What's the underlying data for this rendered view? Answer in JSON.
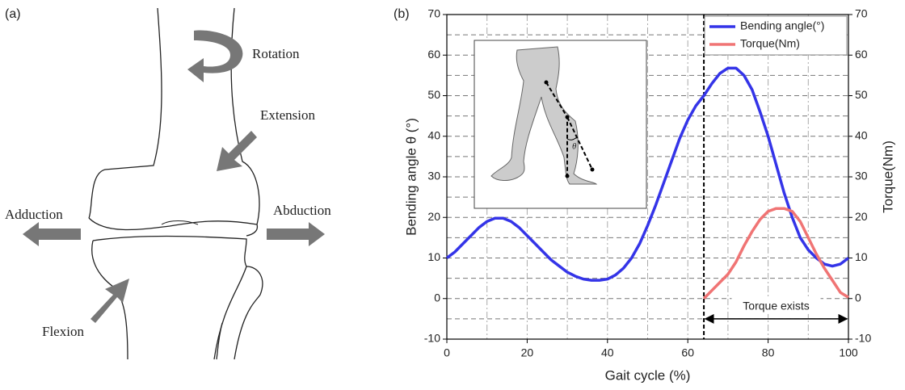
{
  "diagram": {
    "panel_label": "(a)",
    "labels": {
      "rotation": "Rotation",
      "extension": "Extension",
      "adduction": "Adduction",
      "abduction": "Abduction",
      "flexion": "Flexion"
    }
  },
  "chart_data": {
    "type": "line",
    "panel_label": "(b)",
    "x_label": "Gait cycle (%)",
    "y_label": "Bending angle θ (°)",
    "y2_label": "Torque(Nm)",
    "xlim": [
      0,
      100
    ],
    "xticks": [
      0,
      20,
      40,
      60,
      80,
      100
    ],
    "xminor": [
      10,
      30,
      50,
      70,
      90
    ],
    "ylim": [
      -10,
      70
    ],
    "yticks": [
      -10,
      0,
      10,
      20,
      30,
      40,
      50,
      60,
      70
    ],
    "yminor": [
      -5,
      5,
      15,
      25,
      35,
      45,
      55,
      65
    ],
    "y2lim": [
      -10,
      70
    ],
    "y2ticks": [
      -10,
      0,
      10,
      20,
      30,
      40,
      50,
      60,
      70
    ],
    "grid": true,
    "legend": "upper right",
    "vline": 64,
    "inset_label": "θ",
    "annotation": {
      "text": "Torque exists",
      "x": [
        64,
        100
      ],
      "y": -5
    },
    "series": [
      {
        "name": "Bending angle(°)",
        "color": "#3434e8",
        "x": [
          0,
          2,
          4,
          6,
          8,
          10,
          12,
          14,
          16,
          18,
          20,
          22,
          24,
          26,
          28,
          30,
          32,
          34,
          36,
          38,
          40,
          42,
          44,
          46,
          48,
          50,
          52,
          54,
          56,
          58,
          60,
          62,
          64,
          66,
          68,
          70,
          72,
          74,
          76,
          78,
          80,
          82,
          84,
          86,
          88,
          90,
          92,
          94,
          96,
          98,
          100
        ],
        "values": [
          10,
          11.5,
          13.5,
          15.5,
          17.5,
          19,
          19.8,
          19.8,
          19,
          17.5,
          15.5,
          13.5,
          11.5,
          9.5,
          8,
          6.5,
          5.5,
          4.8,
          4.5,
          4.5,
          4.8,
          5.8,
          7.5,
          10,
          13.5,
          18,
          23,
          28.5,
          34,
          39.5,
          44,
          47.5,
          50,
          53,
          55.5,
          56.8,
          56.8,
          55,
          51.5,
          46,
          40,
          33,
          26,
          20,
          15,
          12,
          10,
          8.5,
          8,
          8.5,
          10
        ]
      },
      {
        "name": "Torque(Nm)",
        "color": "#f07474",
        "axis": "y2",
        "x": [
          64,
          66,
          68,
          70,
          72,
          74,
          76,
          78,
          80,
          82,
          84,
          86,
          88,
          90,
          92,
          94,
          96,
          98,
          100
        ],
        "values": [
          0,
          2,
          4,
          6,
          9,
          13,
          16.5,
          19.5,
          21.5,
          22.2,
          22.2,
          21.5,
          19,
          15,
          11,
          7.5,
          4.5,
          1.5,
          0.3
        ]
      }
    ]
  }
}
